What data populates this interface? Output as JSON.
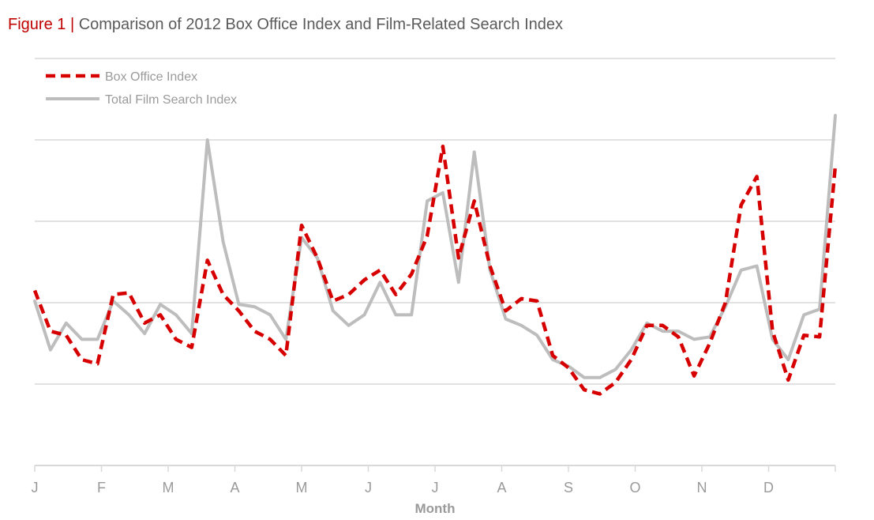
{
  "figure": {
    "prefix": "Figure 1",
    "separator": "|",
    "title": "Comparison of 2012 Box Office Index and Film-Related Search Index"
  },
  "colors": {
    "box_office": "#d60000",
    "search": "#bdbdbd",
    "grid": "#d9d9d9",
    "axis_text": "#9a9a9a"
  },
  "chart_data": {
    "type": "line",
    "title": "Comparison of 2012 Box Office Index and Film-Related Search Index",
    "xlabel": "Month",
    "ylabel": "",
    "grid": "horizontal",
    "legend_position": "top-left",
    "x_ticks": [
      "J",
      "F",
      "M",
      "A",
      "M",
      "J",
      "J",
      "A",
      "S",
      "O",
      "N",
      "D"
    ],
    "ylim": [
      0,
      5
    ],
    "series": [
      {
        "name": "Box Office Index",
        "style": "dashed",
        "values": [
          2.15,
          1.65,
          1.6,
          1.3,
          1.25,
          2.1,
          2.12,
          1.75,
          1.85,
          1.55,
          1.45,
          2.52,
          2.1,
          1.9,
          1.65,
          1.55,
          1.35,
          2.95,
          2.55,
          2.02,
          2.1,
          2.28,
          2.4,
          2.1,
          2.35,
          2.82,
          3.92,
          2.55,
          3.25,
          2.45,
          1.9,
          2.05,
          2.02,
          1.35,
          1.2,
          0.93,
          0.88,
          1.02,
          1.3,
          1.72,
          1.72,
          1.58,
          1.1,
          1.5,
          2.0,
          3.2,
          3.55,
          1.65,
          1.05,
          1.6,
          1.58,
          3.68
        ]
      },
      {
        "name": "Total Film Search Index",
        "style": "solid",
        "values": [
          2.02,
          1.42,
          1.75,
          1.55,
          1.55,
          2.02,
          1.85,
          1.62,
          1.98,
          1.85,
          1.62,
          4.0,
          2.75,
          1.98,
          1.95,
          1.85,
          1.55,
          2.8,
          2.55,
          1.9,
          1.72,
          1.85,
          2.25,
          1.85,
          1.85,
          3.25,
          3.35,
          2.25,
          3.85,
          2.4,
          1.8,
          1.72,
          1.6,
          1.3,
          1.22,
          1.08,
          1.08,
          1.18,
          1.42,
          1.75,
          1.65,
          1.65,
          1.55,
          1.58,
          1.95,
          2.4,
          2.45,
          1.55,
          1.3,
          1.85,
          1.92,
          4.3
        ]
      }
    ]
  }
}
